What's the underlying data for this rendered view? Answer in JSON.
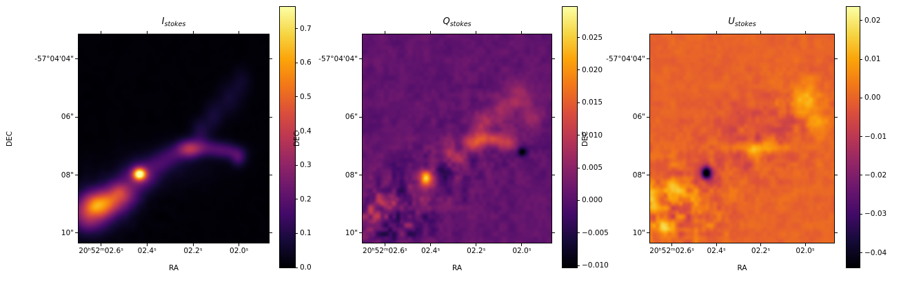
{
  "figure": {
    "background": "#ffffff"
  },
  "chart_data": [
    {
      "type": "heatmap",
      "title_main": "I",
      "title_sub": "stokes",
      "xlabel": "RA",
      "ylabel": "DEC",
      "colormap": "inferno",
      "xlim": [
        2.698,
        1.87
      ],
      "ylim": [
        3.147,
        10.332
      ],
      "x_ticks": [
        {
          "label": "20ʰ52ᵐ02.6ˢ",
          "value": 2.6
        },
        {
          "label": "02.4ˢ",
          "value": 2.4
        },
        {
          "label": "02.2ˢ",
          "value": 2.2
        },
        {
          "label": "02.0ˢ",
          "value": 2.0
        }
      ],
      "y_ticks": [
        {
          "label": "-57°04'04\"",
          "value": 4
        },
        {
          "label": "06\"",
          "value": 6
        },
        {
          "label": "08\"",
          "value": 8
        },
        {
          "label": "10\"",
          "value": 10
        }
      ],
      "colorbar": {
        "vmin": 0.0,
        "vmax": 0.764,
        "ticks": [
          {
            "label": "0.7",
            "value": 0.7
          },
          {
            "label": "0.6",
            "value": 0.6
          },
          {
            "label": "0.5",
            "value": 0.5
          },
          {
            "label": "0.4",
            "value": 0.4
          },
          {
            "label": "0.3",
            "value": 0.3
          },
          {
            "label": "0.2",
            "value": 0.2
          },
          {
            "label": "0.1",
            "value": 0.1
          },
          {
            "label": "0.0",
            "value": 0.0
          }
        ]
      },
      "render": {
        "seed": 11,
        "base": 0.004,
        "noise_base": 0.003,
        "noise_regions": [
          {
            "x": 0.18,
            "y": 0.8,
            "sx": 0.18,
            "sy": 0.1,
            "amp": 0.012
          }
        ],
        "blobs": [
          {
            "x": 0.115,
            "y": 0.815,
            "sx": 0.065,
            "sy": 0.042,
            "a": 0.45
          },
          {
            "x": 0.115,
            "y": 0.82,
            "sx": 0.12,
            "sy": 0.085,
            "a": 0.12
          },
          {
            "x": 0.05,
            "y": 0.88,
            "sx": 0.06,
            "sy": 0.05,
            "a": 0.22
          },
          {
            "x": 0.21,
            "y": 0.76,
            "sx": 0.045,
            "sy": 0.04,
            "a": 0.25
          },
          {
            "x": 0.27,
            "y": 0.77,
            "sx": 0.05,
            "sy": 0.05,
            "a": 0.1
          },
          {
            "x": 0.32,
            "y": 0.67,
            "sx": 0.024,
            "sy": 0.02,
            "a": 0.62
          },
          {
            "x": 0.325,
            "y": 0.68,
            "sx": 0.06,
            "sy": 0.045,
            "a": 0.22
          },
          {
            "x": 0.42,
            "y": 0.62,
            "sx": 0.05,
            "sy": 0.035,
            "a": 0.09
          },
          {
            "x": 0.49,
            "y": 0.58,
            "sx": 0.05,
            "sy": 0.035,
            "a": 0.1
          },
          {
            "x": 0.58,
            "y": 0.55,
            "sx": 0.045,
            "sy": 0.03,
            "a": 0.28
          },
          {
            "x": 0.68,
            "y": 0.545,
            "sx": 0.08,
            "sy": 0.028,
            "a": 0.15
          },
          {
            "x": 0.79,
            "y": 0.565,
            "sx": 0.055,
            "sy": 0.025,
            "a": 0.12
          },
          {
            "x": 0.84,
            "y": 0.595,
            "sx": 0.028,
            "sy": 0.028,
            "a": 0.14
          },
          {
            "x": 0.64,
            "y": 0.47,
            "sx": 0.035,
            "sy": 0.045,
            "a": 0.09
          },
          {
            "x": 0.71,
            "y": 0.39,
            "sx": 0.035,
            "sy": 0.05,
            "a": 0.07
          },
          {
            "x": 0.79,
            "y": 0.31,
            "sx": 0.04,
            "sy": 0.055,
            "a": 0.06
          },
          {
            "x": 0.855,
            "y": 0.23,
            "sx": 0.035,
            "sy": 0.05,
            "a": 0.05
          },
          {
            "x": 0.45,
            "y": 0.64,
            "sx": 0.18,
            "sy": 0.07,
            "a": 0.04
          }
        ]
      }
    },
    {
      "type": "heatmap",
      "title_main": "Q",
      "title_sub": "stokes",
      "xlabel": "RA",
      "ylabel": "DEC",
      "colormap": "inferno",
      "xlim": [
        2.698,
        1.87
      ],
      "ylim": [
        3.147,
        10.332
      ],
      "x_ticks": [
        {
          "label": "20ʰ52ᵐ02.6ˢ",
          "value": 2.6
        },
        {
          "label": "02.4ˢ",
          "value": 2.4
        },
        {
          "label": "02.2ˢ",
          "value": 2.2
        },
        {
          "label": "02.0ˢ",
          "value": 2.0
        }
      ],
      "y_ticks": [
        {
          "label": "-57°04'04\"",
          "value": 4
        },
        {
          "label": "06\"",
          "value": 6
        },
        {
          "label": "08\"",
          "value": 8
        },
        {
          "label": "10\"",
          "value": 10
        }
      ],
      "colorbar": {
        "vmin": -0.0103,
        "vmax": 0.0297,
        "ticks": [
          {
            "label": "0.025",
            "value": 0.025
          },
          {
            "label": "0.020",
            "value": 0.02
          },
          {
            "label": "0.015",
            "value": 0.015
          },
          {
            "label": "0.010",
            "value": 0.01
          },
          {
            "label": "0.005",
            "value": 0.005
          },
          {
            "label": "0.000",
            "value": 0.0
          },
          {
            "label": "−0.005",
            "value": -0.005
          },
          {
            "label": "−0.010",
            "value": -0.01
          }
        ]
      },
      "render": {
        "seed": 42,
        "base": 0.0008,
        "noise_base": 0.0012,
        "noise_regions": [
          {
            "x": 0.13,
            "y": 0.86,
            "sx": 0.16,
            "sy": 0.12,
            "amp": 0.0052
          },
          {
            "x": 0.45,
            "y": 0.65,
            "sx": 0.15,
            "sy": 0.1,
            "amp": 0.002
          },
          {
            "x": 0.7,
            "y": 0.45,
            "sx": 0.18,
            "sy": 0.12,
            "amp": 0.0012
          }
        ],
        "blobs": [
          {
            "x": 0.335,
            "y": 0.69,
            "sx": 0.02,
            "sy": 0.026,
            "a": 0.0245
          },
          {
            "x": 0.33,
            "y": 0.73,
            "sx": 0.045,
            "sy": 0.045,
            "a": 0.005
          },
          {
            "x": 0.115,
            "y": 0.8,
            "sx": 0.038,
            "sy": 0.026,
            "a": 0.0125
          },
          {
            "x": 0.05,
            "y": 0.86,
            "sx": 0.03,
            "sy": 0.03,
            "a": 0.006
          },
          {
            "x": 0.46,
            "y": 0.55,
            "sx": 0.03,
            "sy": 0.03,
            "a": 0.006
          },
          {
            "x": 0.52,
            "y": 0.6,
            "sx": 0.03,
            "sy": 0.028,
            "a": 0.007
          },
          {
            "x": 0.585,
            "y": 0.52,
            "sx": 0.04,
            "sy": 0.028,
            "a": 0.01
          },
          {
            "x": 0.67,
            "y": 0.5,
            "sx": 0.05,
            "sy": 0.024,
            "a": 0.011
          },
          {
            "x": 0.76,
            "y": 0.52,
            "sx": 0.04,
            "sy": 0.026,
            "a": 0.008
          },
          {
            "x": 0.63,
            "y": 0.42,
            "sx": 0.035,
            "sy": 0.035,
            "a": 0.008
          },
          {
            "x": 0.73,
            "y": 0.37,
            "sx": 0.04,
            "sy": 0.04,
            "a": 0.007
          },
          {
            "x": 0.82,
            "y": 0.29,
            "sx": 0.05,
            "sy": 0.05,
            "a": 0.007
          },
          {
            "x": 0.9,
            "y": 0.4,
            "sx": 0.04,
            "sy": 0.04,
            "a": 0.005
          },
          {
            "x": 0.845,
            "y": 0.565,
            "sx": 0.017,
            "sy": 0.017,
            "a": -0.012
          },
          {
            "x": 0.42,
            "y": 0.65,
            "sx": 0.028,
            "sy": 0.028,
            "a": -0.005
          }
        ]
      }
    },
    {
      "type": "heatmap",
      "title_main": "U",
      "title_sub": "stokes",
      "xlabel": "RA",
      "ylabel": "DEC",
      "colormap": "inferno",
      "xlim": [
        2.698,
        1.87
      ],
      "ylim": [
        3.147,
        10.332
      ],
      "x_ticks": [
        {
          "label": "20ʰ52ᵐ02.6ˢ",
          "value": 2.6
        },
        {
          "label": "02.4ˢ",
          "value": 2.4
        },
        {
          "label": "02.2ˢ",
          "value": 2.2
        },
        {
          "label": "02.0ˢ",
          "value": 2.0
        }
      ],
      "y_ticks": [
        {
          "label": "-57°04'04\"",
          "value": 4
        },
        {
          "label": "06\"",
          "value": 6
        },
        {
          "label": "08\"",
          "value": 8
        },
        {
          "label": "10\"",
          "value": 10
        }
      ],
      "colorbar": {
        "vmin": -0.0438,
        "vmax": 0.0235,
        "ticks": [
          {
            "label": "0.02",
            "value": 0.02
          },
          {
            "label": "0.01",
            "value": 0.01
          },
          {
            "label": "0.00",
            "value": 0.0
          },
          {
            "label": "−0.01",
            "value": -0.01
          },
          {
            "label": "−0.02",
            "value": -0.02
          },
          {
            "label": "−0.03",
            "value": -0.03
          },
          {
            "label": "−0.04",
            "value": -0.04
          }
        ]
      },
      "render": {
        "seed": 77,
        "base": 0.0,
        "noise_base": 0.0015,
        "noise_regions": [
          {
            "x": 0.13,
            "y": 0.84,
            "sx": 0.17,
            "sy": 0.13,
            "amp": 0.007
          },
          {
            "x": 0.55,
            "y": 0.55,
            "sx": 0.2,
            "sy": 0.12,
            "amp": 0.003
          },
          {
            "x": 0.8,
            "y": 0.35,
            "sx": 0.12,
            "sy": 0.1,
            "amp": 0.003
          }
        ],
        "blobs": [
          {
            "x": 0.305,
            "y": 0.665,
            "sx": 0.018,
            "sy": 0.02,
            "a": -0.042
          },
          {
            "x": 0.305,
            "y": 0.665,
            "sx": 0.05,
            "sy": 0.05,
            "a": -0.009
          },
          {
            "x": 0.005,
            "y": 0.79,
            "sx": 0.022,
            "sy": 0.04,
            "a": 0.019
          },
          {
            "x": 0.12,
            "y": 0.74,
            "sx": 0.04,
            "sy": 0.033,
            "a": 0.014
          },
          {
            "x": 0.07,
            "y": 0.92,
            "sx": 0.035,
            "sy": 0.028,
            "a": 0.013
          },
          {
            "x": 0.2,
            "y": 0.79,
            "sx": 0.03,
            "sy": 0.03,
            "a": 0.008
          },
          {
            "x": 0.63,
            "y": 0.545,
            "sx": 0.065,
            "sy": 0.02,
            "a": 0.015
          },
          {
            "x": 0.55,
            "y": 0.58,
            "sx": 0.03,
            "sy": 0.03,
            "a": 0.007
          },
          {
            "x": 0.84,
            "y": 0.31,
            "sx": 0.045,
            "sy": 0.055,
            "a": 0.013
          },
          {
            "x": 0.91,
            "y": 0.44,
            "sx": 0.04,
            "sy": 0.04,
            "a": 0.008
          },
          {
            "x": 0.75,
            "y": 0.42,
            "sx": 0.028,
            "sy": 0.028,
            "a": -0.009
          },
          {
            "x": 0.52,
            "y": 0.63,
            "sx": 0.028,
            "sy": 0.028,
            "a": -0.007
          },
          {
            "x": 0.6,
            "y": 0.47,
            "sx": 0.15,
            "sy": 0.08,
            "a": -0.003
          },
          {
            "x": 0.45,
            "y": 0.4,
            "sx": 0.2,
            "sy": 0.15,
            "a": -0.0015
          }
        ]
      }
    }
  ]
}
